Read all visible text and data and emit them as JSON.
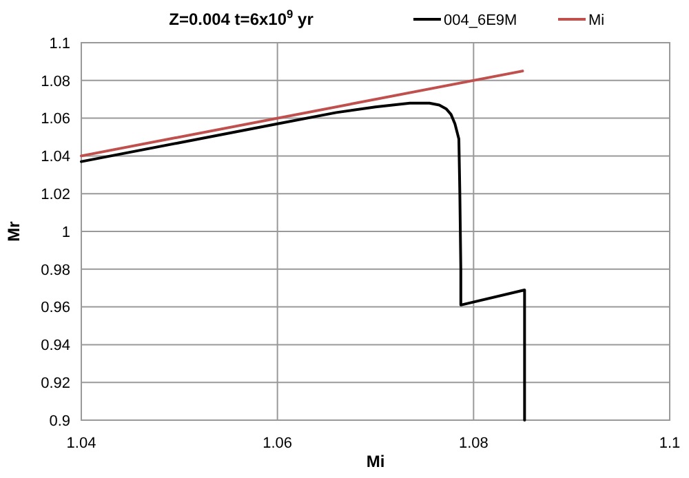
{
  "chart_data": {
    "type": "line",
    "title": "Z=0.004    t=6x10$^{9}$ yr",
    "xlabel": "Mi",
    "ylabel": "Mr",
    "xlim": [
      1.04,
      1.1
    ],
    "xticks": [
      1.04,
      1.06,
      1.08,
      1.1
    ],
    "ylim": [
      0.9,
      1.1
    ],
    "yticks": [
      0.9,
      0.92,
      0.94,
      0.96,
      0.98,
      1,
      1.02,
      1.04,
      1.06,
      1.08,
      1.1
    ],
    "grid": true,
    "legend": "top right",
    "marker": "none",
    "line_style": "solid",
    "series": [
      {
        "name": "004_6E9M",
        "color": "#000000",
        "x": [
          1.04,
          1.05,
          1.06,
          1.066,
          1.07,
          1.0735,
          1.0755,
          1.0765,
          1.0772,
          1.0777,
          1.0781,
          1.0785,
          1.0786,
          1.0787,
          1.0787,
          1.0852,
          1.0852
        ],
        "values": [
          1.037,
          1.047,
          1.057,
          1.063,
          1.066,
          1.068,
          1.068,
          1.067,
          1.065,
          1.062,
          1.057,
          1.049,
          1.02,
          0.98,
          0.961,
          0.969,
          0.9
        ]
      },
      {
        "name": "Mi",
        "color": "#c0504d",
        "x": [
          1.04,
          1.085
        ],
        "values": [
          1.04,
          1.085
        ]
      }
    ]
  }
}
